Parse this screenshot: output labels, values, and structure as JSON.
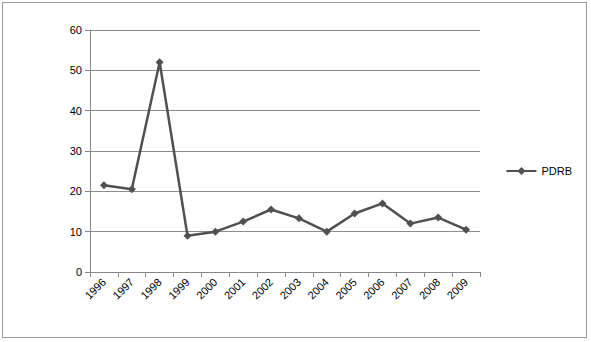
{
  "chart_data": {
    "type": "line",
    "categories": [
      "1996",
      "1997",
      "1998",
      "1999",
      "2000",
      "2001",
      "2002",
      "2003",
      "2004",
      "2005",
      "2006",
      "2007",
      "2008",
      "2009"
    ],
    "series": [
      {
        "name": "PDRB",
        "color": "#505050",
        "marker": "diamond",
        "line_style": "solid",
        "values": [
          21.5,
          20.5,
          52,
          9,
          10,
          12.5,
          15.5,
          13.3,
          10,
          14.5,
          17,
          12,
          13.5,
          10.5
        ]
      }
    ],
    "ylim": [
      0,
      60
    ],
    "yticks": [
      0,
      10,
      20,
      30,
      40,
      50,
      60
    ],
    "grid": true,
    "legend": "right"
  }
}
